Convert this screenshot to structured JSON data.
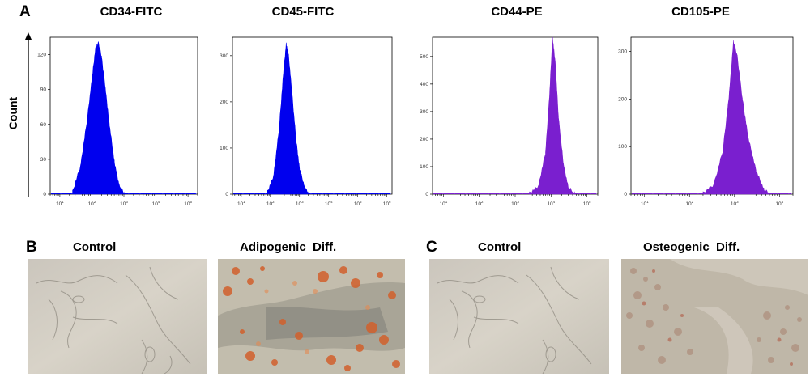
{
  "panels": {
    "a": "A",
    "b": "B",
    "c": "C"
  },
  "count_label": "Count",
  "photo_titles": {
    "b_control": "Control",
    "b_treated": "Adipogenic  Diff.",
    "c_control": "Control",
    "c_treated": "Osteogenic  Diff."
  },
  "colors": {
    "fitc": "#0000ee",
    "pe": "#7a1fcf",
    "axis": "#000000"
  },
  "chart_data": [
    {
      "type": "area",
      "title": "CD34-FITC",
      "xscale": "log",
      "xlim": [
        5,
        200000
      ],
      "x_tick_exponents": [
        1,
        2,
        3,
        4,
        5
      ],
      "ylim": [
        0,
        135
      ],
      "y_ticks": [
        0,
        30,
        60,
        90,
        120
      ],
      "y_tick_labels": [
        "0",
        "30",
        "60",
        "90",
        "120"
      ],
      "peak_log10": 2.2,
      "peak_count": 130,
      "color_key": "fitc",
      "x": [
        25,
        45,
        70,
        100,
        130,
        160,
        200,
        260,
        350,
        500,
        700,
        1000
      ],
      "y": [
        2,
        25,
        62,
        98,
        125,
        130,
        118,
        92,
        60,
        28,
        8,
        1
      ]
    },
    {
      "type": "area",
      "title": "CD45-FITC",
      "xscale": "log",
      "xlim": [
        5,
        1500000
      ],
      "x_tick_exponents": [
        1,
        2,
        3,
        4,
        5,
        6
      ],
      "ylim": [
        0,
        340
      ],
      "y_ticks": [
        0,
        100,
        200,
        300
      ],
      "y_tick_labels": [
        "0",
        "100",
        "200",
        "300"
      ],
      "peak_log10": 2.55,
      "peak_count": 325,
      "color_key": "fitc",
      "x": [
        80,
        130,
        200,
        280,
        350,
        420,
        550,
        750,
        1000,
        1500,
        2000
      ],
      "y": [
        5,
        40,
        140,
        260,
        325,
        300,
        220,
        120,
        55,
        15,
        2
      ]
    },
    {
      "type": "area",
      "title": "CD44-PE",
      "xscale": "log",
      "xlim": [
        5,
        200000
      ],
      "x_tick_exponents": [
        1,
        2,
        3,
        4,
        5
      ],
      "ylim": [
        0,
        570
      ],
      "y_ticks": [
        0,
        100,
        200,
        300,
        400,
        500
      ],
      "y_tick_labels": [
        "0",
        "100",
        "200",
        "300",
        "400",
        "500"
      ],
      "peak_log10": 4.05,
      "peak_count": 565,
      "color_key": "pe",
      "x": [
        2500,
        4500,
        7000,
        9000,
        11000,
        13000,
        16000,
        22000,
        30000,
        45000
      ],
      "y": [
        3,
        30,
        150,
        350,
        565,
        480,
        280,
        110,
        25,
        2
      ]
    },
    {
      "type": "area",
      "title": "CD105-PE",
      "xscale": "log",
      "xlim": [
        5,
        20000
      ],
      "x_tick_exponents": [
        1,
        2,
        3,
        4
      ],
      "ylim": [
        0,
        330
      ],
      "y_ticks": [
        0,
        100,
        200,
        300
      ],
      "y_tick_labels": [
        "0",
        "100",
        "200",
        "300"
      ],
      "peak_log10": 3.05,
      "peak_count": 320,
      "color_key": "pe",
      "x": [
        200,
        350,
        550,
        750,
        950,
        1150,
        1500,
        2000,
        3000,
        4500,
        6000
      ],
      "y": [
        2,
        20,
        90,
        200,
        320,
        290,
        200,
        120,
        50,
        10,
        1
      ]
    }
  ]
}
